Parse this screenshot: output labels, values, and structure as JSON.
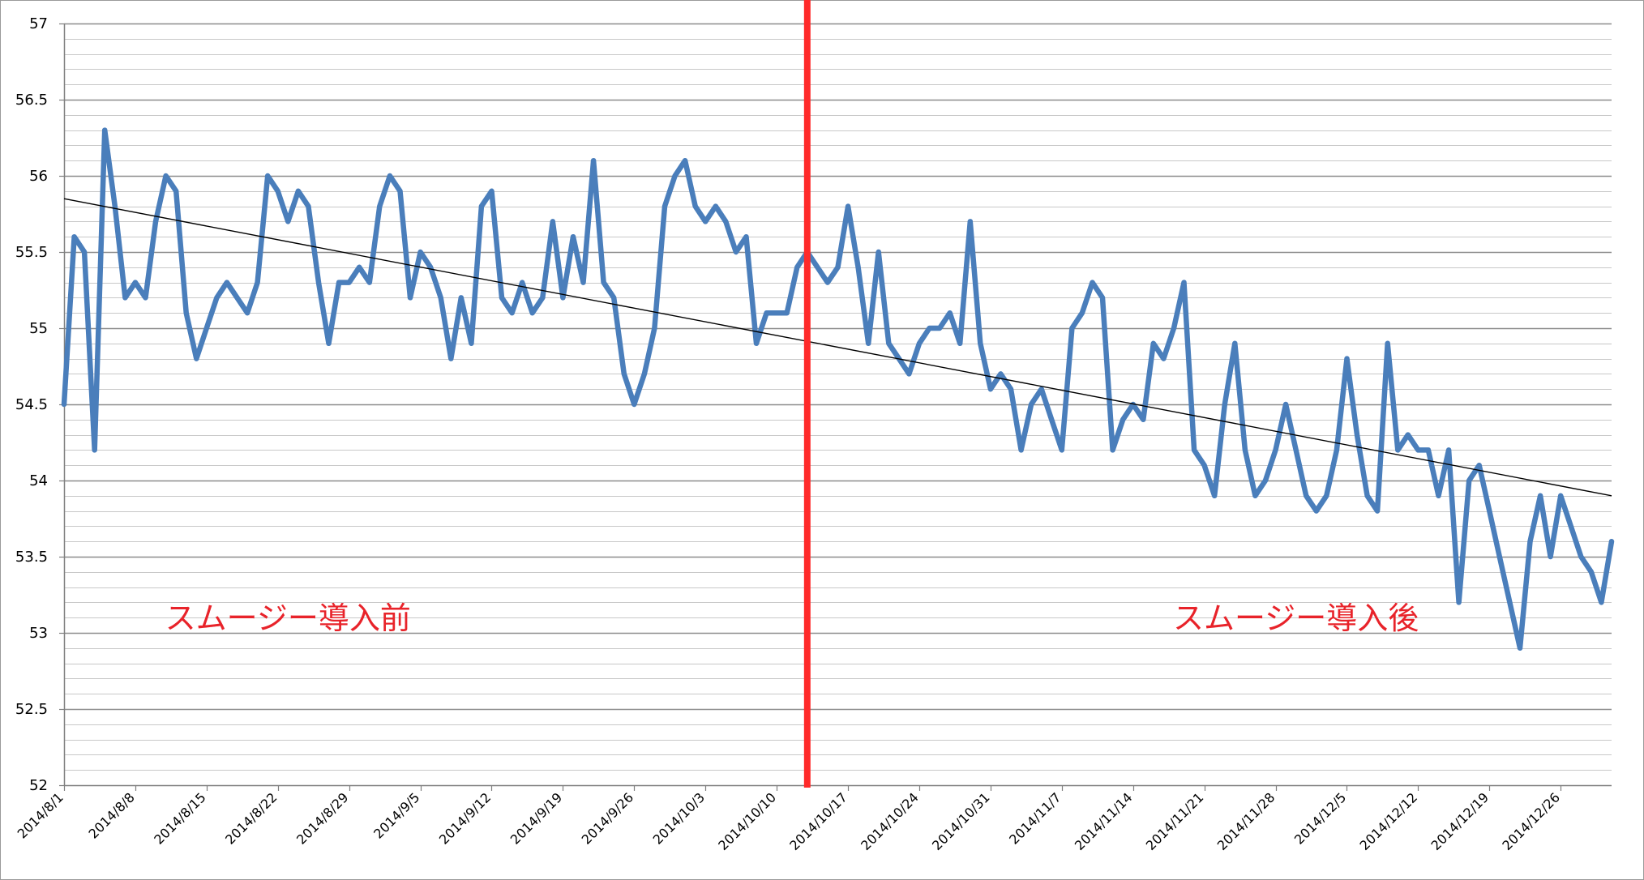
{
  "colors": {
    "series": "#4a7ebb",
    "trendline": "#000000",
    "divider": "#ff2a2a",
    "annotation": "#e8232a",
    "major_grid": "#8c8c8c",
    "minor_grid": "#c8c8c8"
  },
  "chart_data": {
    "type": "line",
    "title": "",
    "xlabel": "",
    "ylabel": "",
    "ylim": [
      52,
      57
    ],
    "y_major_step": 0.5,
    "y_minor_step": 0.1,
    "y_ticks": [
      "52",
      "52.5",
      "53",
      "53.5",
      "54",
      "54.5",
      "55",
      "55.5",
      "56",
      "56.5",
      "57"
    ],
    "x_range": [
      "2014-08-01",
      "2014-12-31"
    ],
    "x_ticks": [
      {
        "date": "2014-08-01",
        "label": "2014/8/1"
      },
      {
        "date": "2014-08-08",
        "label": "2014/8/8"
      },
      {
        "date": "2014-08-15",
        "label": "2014/8/15"
      },
      {
        "date": "2014-08-22",
        "label": "2014/8/22"
      },
      {
        "date": "2014-08-29",
        "label": "2014/8/29"
      },
      {
        "date": "2014-09-05",
        "label": "2014/9/5"
      },
      {
        "date": "2014-09-12",
        "label": "2014/9/12"
      },
      {
        "date": "2014-09-19",
        "label": "2014/9/19"
      },
      {
        "date": "2014-09-26",
        "label": "2014/9/26"
      },
      {
        "date": "2014-10-03",
        "label": "2014/10/3"
      },
      {
        "date": "2014-10-10",
        "label": "2014/10/10"
      },
      {
        "date": "2014-10-17",
        "label": "2014/10/17"
      },
      {
        "date": "2014-10-24",
        "label": "2014/10/24"
      },
      {
        "date": "2014-10-31",
        "label": "2014/10/31"
      },
      {
        "date": "2014-11-07",
        "label": "2014/11/7"
      },
      {
        "date": "2014-11-14",
        "label": "2014/11/14"
      },
      {
        "date": "2014-11-21",
        "label": "2014/11/21"
      },
      {
        "date": "2014-11-28",
        "label": "2014/11/28"
      },
      {
        "date": "2014-12-05",
        "label": "2014/12/5"
      },
      {
        "date": "2014-12-12",
        "label": "2014/12/12"
      },
      {
        "date": "2014-12-19",
        "label": "2014/12/19"
      },
      {
        "date": "2014-12-26",
        "label": "2014/12/26"
      }
    ],
    "grid": true,
    "legend": "none",
    "series": [
      {
        "points": [
          [
            "2014-08-01",
            54.5
          ],
          [
            "2014-08-02",
            55.6
          ],
          [
            "2014-08-03",
            55.5
          ],
          [
            "2014-08-04",
            54.2
          ],
          [
            "2014-08-05",
            56.3
          ],
          [
            "2014-08-06",
            55.8
          ],
          [
            "2014-08-07",
            55.2
          ],
          [
            "2014-08-08",
            55.3
          ],
          [
            "2014-08-09",
            55.2
          ],
          [
            "2014-08-10",
            55.7
          ],
          [
            "2014-08-11",
            56.0
          ],
          [
            "2014-08-12",
            55.9
          ],
          [
            "2014-08-13",
            55.1
          ],
          [
            "2014-08-14",
            54.8
          ],
          [
            "2014-08-15",
            55.0
          ],
          [
            "2014-08-16",
            55.2
          ],
          [
            "2014-08-17",
            55.3
          ],
          [
            "2014-08-18",
            55.2
          ],
          [
            "2014-08-19",
            55.1
          ],
          [
            "2014-08-20",
            55.3
          ],
          [
            "2014-08-21",
            56.0
          ],
          [
            "2014-08-22",
            55.9
          ],
          [
            "2014-08-23",
            55.7
          ],
          [
            "2014-08-24",
            55.9
          ],
          [
            "2014-08-25",
            55.8
          ],
          [
            "2014-08-26",
            55.3
          ],
          [
            "2014-08-27",
            54.9
          ],
          [
            "2014-08-28",
            55.3
          ],
          [
            "2014-08-29",
            55.3
          ],
          [
            "2014-08-30",
            55.4
          ],
          [
            "2014-08-31",
            55.3
          ],
          [
            "2014-09-01",
            55.8
          ],
          [
            "2014-09-02",
            56.0
          ],
          [
            "2014-09-03",
            55.9
          ],
          [
            "2014-09-04",
            55.2
          ],
          [
            "2014-09-05",
            55.5
          ],
          [
            "2014-09-06",
            55.4
          ],
          [
            "2014-09-07",
            55.2
          ],
          [
            "2014-09-08",
            54.8
          ],
          [
            "2014-09-09",
            55.2
          ],
          [
            "2014-09-10",
            54.9
          ],
          [
            "2014-09-11",
            55.8
          ],
          [
            "2014-09-12",
            55.9
          ],
          [
            "2014-09-13",
            55.2
          ],
          [
            "2014-09-14",
            55.1
          ],
          [
            "2014-09-15",
            55.3
          ],
          [
            "2014-09-16",
            55.1
          ],
          [
            "2014-09-17",
            55.2
          ],
          [
            "2014-09-18",
            55.7
          ],
          [
            "2014-09-19",
            55.2
          ],
          [
            "2014-09-20",
            55.6
          ],
          [
            "2014-09-21",
            55.3
          ],
          [
            "2014-09-22",
            56.1
          ],
          [
            "2014-09-23",
            55.3
          ],
          [
            "2014-09-24",
            55.2
          ],
          [
            "2014-09-25",
            54.7
          ],
          [
            "2014-09-26",
            54.5
          ],
          [
            "2014-09-27",
            54.7
          ],
          [
            "2014-09-28",
            55.0
          ],
          [
            "2014-09-29",
            55.8
          ],
          [
            "2014-09-30",
            56.0
          ],
          [
            "2014-10-01",
            56.1
          ],
          [
            "2014-10-02",
            55.8
          ],
          [
            "2014-10-03",
            55.7
          ],
          [
            "2014-10-04",
            55.8
          ],
          [
            "2014-10-05",
            55.7
          ],
          [
            "2014-10-06",
            55.5
          ],
          [
            "2014-10-07",
            55.6
          ],
          [
            "2014-10-08",
            54.9
          ],
          [
            "2014-10-09",
            55.1
          ],
          [
            "2014-10-10",
            55.1
          ],
          [
            "2014-10-11",
            55.1
          ],
          [
            "2014-10-12",
            55.4
          ],
          [
            "2014-10-13",
            55.5
          ],
          [
            "2014-10-14",
            55.4
          ],
          [
            "2014-10-15",
            55.3
          ],
          [
            "2014-10-16",
            55.4
          ],
          [
            "2014-10-17",
            55.8
          ],
          [
            "2014-10-18",
            55.4
          ],
          [
            "2014-10-19",
            54.9
          ],
          [
            "2014-10-20",
            55.5
          ],
          [
            "2014-10-21",
            54.9
          ],
          [
            "2014-10-22",
            54.8
          ],
          [
            "2014-10-23",
            54.7
          ],
          [
            "2014-10-24",
            54.9
          ],
          [
            "2014-10-25",
            55.0
          ],
          [
            "2014-10-26",
            55.0
          ],
          [
            "2014-10-27",
            55.1
          ],
          [
            "2014-10-28",
            54.9
          ],
          [
            "2014-10-29",
            55.7
          ],
          [
            "2014-10-30",
            54.9
          ],
          [
            "2014-10-31",
            54.6
          ],
          [
            "2014-11-01",
            54.7
          ],
          [
            "2014-11-02",
            54.6
          ],
          [
            "2014-11-03",
            54.2
          ],
          [
            "2014-11-04",
            54.5
          ],
          [
            "2014-11-05",
            54.6
          ],
          [
            "2014-11-06",
            54.4
          ],
          [
            "2014-11-07",
            54.2
          ],
          [
            "2014-11-08",
            55.0
          ],
          [
            "2014-11-09",
            55.1
          ],
          [
            "2014-11-10",
            55.3
          ],
          [
            "2014-11-11",
            55.2
          ],
          [
            "2014-11-12",
            54.2
          ],
          [
            "2014-11-13",
            54.4
          ],
          [
            "2014-11-14",
            54.5
          ],
          [
            "2014-11-15",
            54.4
          ],
          [
            "2014-11-16",
            54.9
          ],
          [
            "2014-11-17",
            54.8
          ],
          [
            "2014-11-18",
            55.0
          ],
          [
            "2014-11-19",
            55.3
          ],
          [
            "2014-11-20",
            54.2
          ],
          [
            "2014-11-21",
            54.1
          ],
          [
            "2014-11-22",
            53.9
          ],
          [
            "2014-11-23",
            54.5
          ],
          [
            "2014-11-24",
            54.9
          ],
          [
            "2014-11-25",
            54.2
          ],
          [
            "2014-11-26",
            53.9
          ],
          [
            "2014-11-27",
            54.0
          ],
          [
            "2014-11-28",
            54.2
          ],
          [
            "2014-11-29",
            54.5
          ],
          [
            "2014-11-30",
            54.2
          ],
          [
            "2014-12-01",
            53.9
          ],
          [
            "2014-12-02",
            53.8
          ],
          [
            "2014-12-03",
            53.9
          ],
          [
            "2014-12-04",
            54.2
          ],
          [
            "2014-12-05",
            54.8
          ],
          [
            "2014-12-06",
            54.3
          ],
          [
            "2014-12-07",
            53.9
          ],
          [
            "2014-12-08",
            53.8
          ],
          [
            "2014-12-09",
            54.9
          ],
          [
            "2014-12-10",
            54.2
          ],
          [
            "2014-12-11",
            54.3
          ],
          [
            "2014-12-12",
            54.2
          ],
          [
            "2014-12-13",
            54.2
          ],
          [
            "2014-12-14",
            53.9
          ],
          [
            "2014-12-15",
            54.2
          ],
          [
            "2014-12-16",
            53.2
          ],
          [
            "2014-12-17",
            54.0
          ],
          [
            "2014-12-18",
            54.1
          ],
          [
            "2014-12-19",
            53.8
          ],
          [
            "2014-12-20",
            53.5
          ],
          [
            "2014-12-21",
            53.2
          ],
          [
            "2014-12-22",
            52.9
          ],
          [
            "2014-12-23",
            53.6
          ],
          [
            "2014-12-24",
            53.9
          ],
          [
            "2014-12-25",
            53.5
          ],
          [
            "2014-12-26",
            53.9
          ],
          [
            "2014-12-27",
            53.7
          ],
          [
            "2014-12-28",
            53.5
          ],
          [
            "2014-12-29",
            53.4
          ],
          [
            "2014-12-30",
            53.2
          ],
          [
            "2014-12-31",
            53.6
          ]
        ]
      }
    ],
    "trendline": {
      "start": [
        "2014-08-01",
        55.85
      ],
      "end": [
        "2014-12-31",
        53.9
      ]
    },
    "divider_date": "2014-10-13",
    "annotations": [
      {
        "text": "スムージー導入前",
        "date": "2014-08-23",
        "y": 53.1
      },
      {
        "text": "スムージー導入後",
        "date": "2014-11-30",
        "y": 53.1
      }
    ]
  }
}
